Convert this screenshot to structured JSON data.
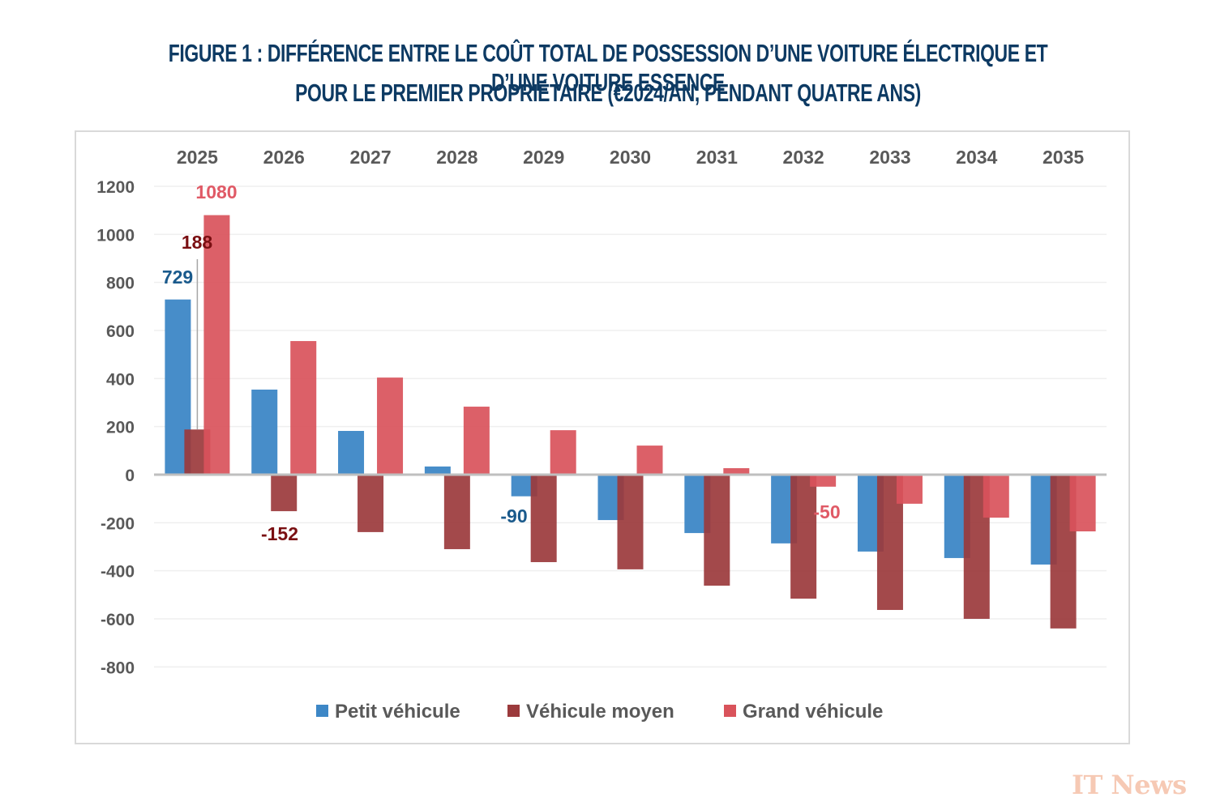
{
  "title": {
    "line1": "Figure 1 : Différence entre le coût total de possession d’une voiture électrique et d’une voiture essence",
    "line2": "pour le premier propriétaire (€2024/an, pendant quatre ans)"
  },
  "watermark": "IT News",
  "colors": {
    "title": "#0d3a63",
    "petit": "#3d87c6",
    "moyen": "#9b3a3c",
    "grand": "#d9535b",
    "label_petit": "#1a5a8c",
    "label_moyen": "#7a0f12",
    "label_grand": "#e05a66",
    "axis_text": "#595959"
  },
  "chart_data": {
    "type": "bar",
    "title": "Figure 1 : Différence entre le coût total de possession d’une voiture électrique et d’une voiture essence pour le premier propriétaire (€2024/an, pendant quatre ans)",
    "xlabel": "",
    "ylabel": "",
    "categories": [
      "2025",
      "2026",
      "2027",
      "2028",
      "2029",
      "2030",
      "2031",
      "2032",
      "2033",
      "2034",
      "2035"
    ],
    "category_axis_position": "top",
    "ylim": [
      -800,
      1200
    ],
    "yticks": [
      1200,
      1000,
      800,
      600,
      400,
      200,
      0,
      -200,
      -400,
      -600,
      -800
    ],
    "grid": true,
    "legend_position": "bottom",
    "series": [
      {
        "name": "Petit véhicule",
        "key": "petit",
        "values": [
          729,
          354,
          182,
          34,
          -90,
          -189,
          -243,
          -286,
          -320,
          -347,
          -374
        ]
      },
      {
        "name": "Véhicule moyen",
        "key": "moyen",
        "values": [
          188,
          -152,
          -239,
          -310,
          -364,
          -394,
          -462,
          -516,
          -563,
          -600,
          -640
        ]
      },
      {
        "name": "Grand véhicule",
        "key": "grand",
        "values": [
          1080,
          556,
          404,
          283,
          185,
          121,
          27,
          -50,
          -121,
          -179,
          -236
        ]
      }
    ],
    "data_labels": [
      {
        "series": "Petit véhicule",
        "category": "2025",
        "text": "729"
      },
      {
        "series": "Véhicule moyen",
        "category": "2025",
        "text": "188"
      },
      {
        "series": "Grand véhicule",
        "category": "2025",
        "text": "1080"
      },
      {
        "series": "Véhicule moyen",
        "category": "2026",
        "text": "-152"
      },
      {
        "series": "Petit véhicule",
        "category": "2029",
        "text": "-90"
      },
      {
        "series": "Grand véhicule",
        "category": "2032",
        "text": "-50"
      }
    ]
  }
}
